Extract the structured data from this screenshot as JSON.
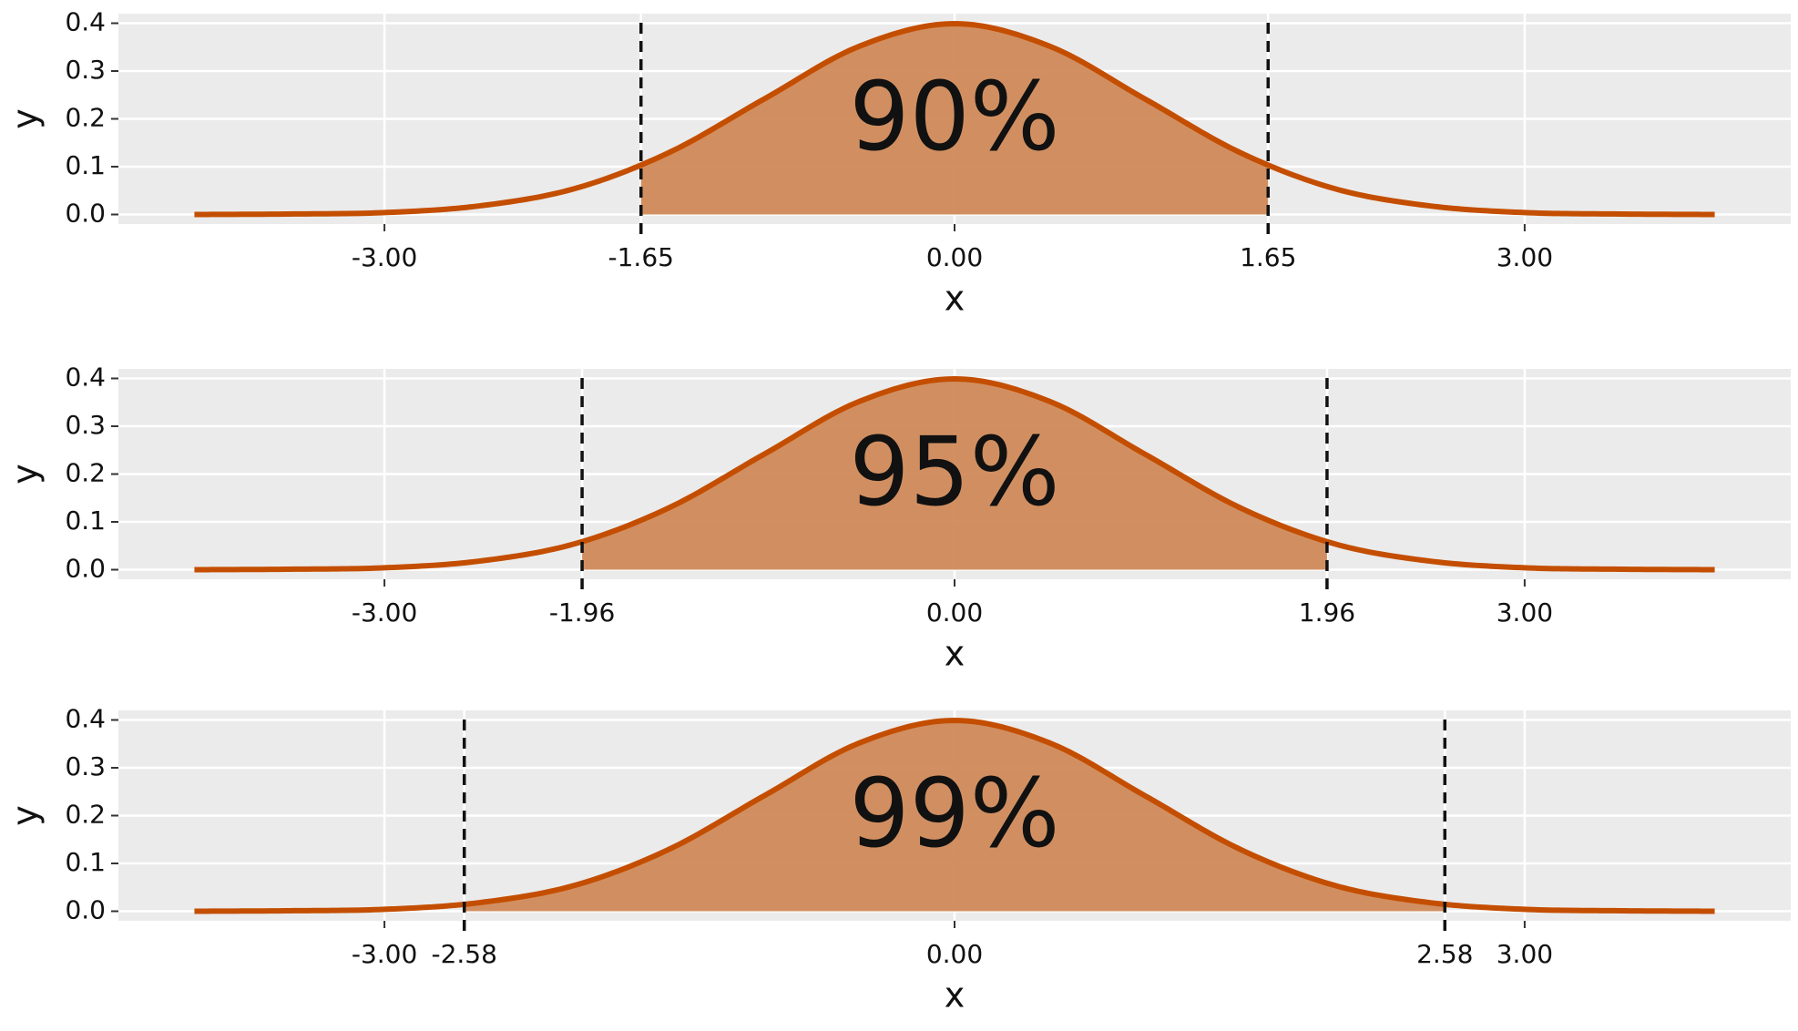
{
  "chart_data": [
    {
      "type": "density",
      "annotation": "90%",
      "xlabel": "x",
      "ylabel": "y",
      "x": [
        -4,
        -3.5,
        -3,
        -2.5,
        -2,
        -1.5,
        -1,
        -0.5,
        0,
        0.5,
        1,
        1.5,
        2,
        2.5,
        3,
        3.5,
        4
      ],
      "y": [
        0.0,
        0.001,
        0.004,
        0.018,
        0.054,
        0.13,
        0.242,
        0.352,
        0.399,
        0.352,
        0.242,
        0.13,
        0.054,
        0.018,
        0.004,
        0.001,
        0.0
      ],
      "interval": [
        -1.65,
        1.65
      ],
      "color": "#c44e00",
      "fill": "#d08a5a",
      "grid": true,
      "xlim": [
        -4.4,
        4.4
      ],
      "ylim": [
        -0.02,
        0.42
      ],
      "xticks": [
        {
          "value": -3,
          "label": "-3.00"
        },
        {
          "value": -1.65,
          "label": "-1.65"
        },
        {
          "value": 0,
          "label": "0.00"
        },
        {
          "value": 1.65,
          "label": "1.65"
        },
        {
          "value": 3,
          "label": "3.00"
        }
      ],
      "yticks": [
        {
          "value": 0,
          "label": "0.0"
        },
        0.1,
        0.2,
        0.3,
        0.4
      ]
    },
    {
      "type": "density",
      "annotation": "95%",
      "xlabel": "x",
      "ylabel": "y",
      "x": [
        -4,
        -3.5,
        -3,
        -2.5,
        -2,
        -1.5,
        -1,
        -0.5,
        0,
        0.5,
        1,
        1.5,
        2,
        2.5,
        3,
        3.5,
        4
      ],
      "y": [
        0.0,
        0.001,
        0.004,
        0.018,
        0.054,
        0.13,
        0.242,
        0.352,
        0.399,
        0.352,
        0.242,
        0.13,
        0.054,
        0.018,
        0.004,
        0.001,
        0.0
      ],
      "interval": [
        -1.96,
        1.96
      ],
      "color": "#c44e00",
      "fill": "#d08a5a",
      "grid": true,
      "xlim": [
        -4.4,
        4.4
      ],
      "ylim": [
        -0.02,
        0.42
      ],
      "xticks": [
        {
          "value": -3,
          "label": "-3.00"
        },
        {
          "value": -1.96,
          "label": "-1.96"
        },
        {
          "value": 0,
          "label": "0.00"
        },
        {
          "value": 1.96,
          "label": "1.96"
        },
        {
          "value": 3,
          "label": "3.00"
        }
      ],
      "yticks": [
        {
          "value": 0,
          "label": "0.0"
        },
        0.1,
        0.2,
        0.3,
        0.4
      ]
    },
    {
      "type": "density",
      "annotation": "99%",
      "xlabel": "x",
      "ylabel": "y",
      "x": [
        -4,
        -3.5,
        -3,
        -2.5,
        -2,
        -1.5,
        -1,
        -0.5,
        0,
        0.5,
        1,
        1.5,
        2,
        2.5,
        3,
        3.5,
        4
      ],
      "y": [
        0.0,
        0.001,
        0.004,
        0.018,
        0.054,
        0.13,
        0.242,
        0.352,
        0.399,
        0.352,
        0.242,
        0.13,
        0.054,
        0.018,
        0.004,
        0.001,
        0.0
      ],
      "interval": [
        -2.58,
        2.58
      ],
      "color": "#c44e00",
      "fill": "#d08a5a",
      "grid": true,
      "xlim": [
        -4.4,
        4.4
      ],
      "ylim": [
        -0.02,
        0.42
      ],
      "xticks": [
        {
          "value": -3,
          "label": "-3.00"
        },
        {
          "value": -2.58,
          "label": "-2.58"
        },
        {
          "value": 0,
          "label": "0.00"
        },
        {
          "value": 2.58,
          "label": "2.58"
        },
        {
          "value": 3,
          "label": "3.00"
        }
      ],
      "yticks": [
        {
          "value": 0,
          "label": "0.0"
        },
        0.1,
        0.2,
        0.3,
        0.4
      ]
    }
  ]
}
